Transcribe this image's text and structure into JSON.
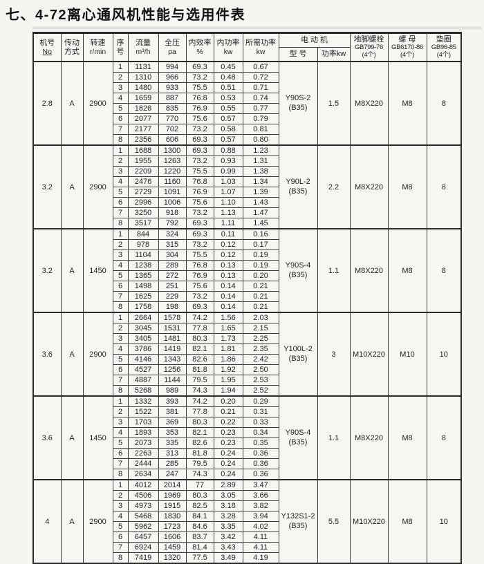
{
  "title": "七、4-72离心通风机性能与选用件表",
  "header": {
    "machine_no": [
      "机号",
      "No"
    ],
    "drive": [
      "传动",
      "方式"
    ],
    "speed": [
      "转速",
      "r/min"
    ],
    "seq": [
      "序",
      "号"
    ],
    "flow": [
      "流量",
      "m³/h"
    ],
    "pressure": [
      "全压",
      "pa"
    ],
    "efficiency": [
      "内效率",
      "%"
    ],
    "power": [
      "内功率",
      "kw"
    ],
    "required_power": [
      "所需功率",
      "kw"
    ],
    "motor": "电 动 机",
    "motor_model": "型 号",
    "motor_power": "功率kw",
    "bolt": [
      "地脚螺栓",
      "GB799-76",
      "(4个)"
    ],
    "nut": [
      "螺 母",
      "GB6170-86",
      "(4个)"
    ],
    "washer": [
      "垫圈",
      "GB96-85",
      "(4个)"
    ]
  },
  "blocks": [
    {
      "machine_no": "2.8",
      "drive": "A",
      "speed": "2900",
      "motor_model": "Y90S-2",
      "motor_frame": "(B35)",
      "motor_power": "1.5",
      "bolt": "M8X220",
      "nut": "M8",
      "washer": "8",
      "rows": [
        [
          "1",
          "1131",
          "994",
          "69.3",
          "0.45",
          "0.67"
        ],
        [
          "2",
          "1310",
          "966",
          "73.2",
          "0.48",
          "0.72"
        ],
        [
          "3",
          "1480",
          "933",
          "75.5",
          "0.51",
          "0.71"
        ],
        [
          "4",
          "1659",
          "887",
          "76.8",
          "0.53",
          "0.74"
        ],
        [
          "5",
          "1828",
          "835",
          "76.9",
          "0.55",
          "0.77"
        ],
        [
          "6",
          "2077",
          "770",
          "75.6",
          "0.57",
          "0.79"
        ],
        [
          "7",
          "2177",
          "702",
          "73.2",
          "0.58",
          "0.81"
        ],
        [
          "8",
          "2356",
          "606",
          "69.3",
          "0.57",
          "0.80"
        ]
      ]
    },
    {
      "machine_no": "3.2",
      "drive": "A",
      "speed": "2900",
      "motor_model": "Y90L-2",
      "motor_frame": "(B35)",
      "motor_power": "2.2",
      "bolt": "M8X220",
      "nut": "M8",
      "washer": "8",
      "rows": [
        [
          "1",
          "1688",
          "1300",
          "69.3",
          "0.88",
          "1.23"
        ],
        [
          "2",
          "1955",
          "1263",
          "73.2",
          "0.93",
          "1.31"
        ],
        [
          "3",
          "2209",
          "1220",
          "75.5",
          "0.99",
          "1.38"
        ],
        [
          "4",
          "2476",
          "1160",
          "76.8",
          "1.03",
          "1.34"
        ],
        [
          "5",
          "2729",
          "1091",
          "76.9",
          "1.07",
          "1.39"
        ],
        [
          "6",
          "2996",
          "1006",
          "75.6",
          "1.10",
          "1.43"
        ],
        [
          "7",
          "3250",
          "918",
          "73.2",
          "1.13",
          "1.47"
        ],
        [
          "8",
          "3517",
          "792",
          "69.3",
          "1.11",
          "1.45"
        ]
      ]
    },
    {
      "machine_no": "3.2",
      "drive": "A",
      "speed": "1450",
      "motor_model": "Y90S-4",
      "motor_frame": "(B35)",
      "motor_power": "1.1",
      "bolt": "M8X220",
      "nut": "M8",
      "washer": "8",
      "rows": [
        [
          "1",
          "844",
          "324",
          "69.3",
          "0.11",
          "0.16"
        ],
        [
          "2",
          "978",
          "315",
          "73.2",
          "0.12",
          "0.17"
        ],
        [
          "3",
          "1104",
          "304",
          "75.5",
          "0.12",
          "0.19"
        ],
        [
          "4",
          "1238",
          "289",
          "76.8",
          "0.13",
          "0.19"
        ],
        [
          "5",
          "1365",
          "272",
          "76.9",
          "0.13",
          "0.20"
        ],
        [
          "6",
          "1498",
          "251",
          "75.6",
          "0.14",
          "0.21"
        ],
        [
          "7",
          "1625",
          "229",
          "73.2",
          "0.14",
          "0.21"
        ],
        [
          "8",
          "1758",
          "198",
          "69.3",
          "0.14",
          "0.21"
        ]
      ]
    },
    {
      "machine_no": "3.6",
      "drive": "A",
      "speed": "2900",
      "motor_model": "Y100L-2",
      "motor_frame": "(B35)",
      "motor_power": "3",
      "bolt": "M10X220",
      "nut": "M10",
      "washer": "10",
      "rows": [
        [
          "1",
          "2664",
          "1578",
          "74.2",
          "1.56",
          "2.03"
        ],
        [
          "2",
          "3045",
          "1531",
          "77.8",
          "1.65",
          "2.15"
        ],
        [
          "3",
          "3405",
          "1481",
          "80.3",
          "1.73",
          "2.25"
        ],
        [
          "4",
          "3786",
          "1419",
          "82.1",
          "1.81",
          "2.35"
        ],
        [
          "5",
          "4146",
          "1343",
          "82.6",
          "1.86",
          "2.42"
        ],
        [
          "6",
          "4527",
          "1256",
          "81.8",
          "1.92",
          "2.50"
        ],
        [
          "7",
          "4887",
          "1144",
          "79.5",
          "1.95",
          "2.53"
        ],
        [
          "8",
          "5268",
          "989",
          "74.3",
          "1.94",
          "2.52"
        ]
      ]
    },
    {
      "machine_no": "3.6",
      "drive": "A",
      "speed": "1450",
      "motor_model": "Y90S-4",
      "motor_frame": "(B35)",
      "motor_power": "1.1",
      "bolt": "M8X220",
      "nut": "M8",
      "washer": "8",
      "rows": [
        [
          "1",
          "1332",
          "393",
          "74.2",
          "0.20",
          "0.29"
        ],
        [
          "2",
          "1522",
          "381",
          "77.8",
          "0.21",
          "0.31"
        ],
        [
          "3",
          "1703",
          "369",
          "80.3",
          "0.22",
          "0.33"
        ],
        [
          "4",
          "1893",
          "353",
          "82.1",
          "0.23",
          "0.34"
        ],
        [
          "5",
          "2073",
          "335",
          "82.6",
          "0.23",
          "0.35"
        ],
        [
          "6",
          "2263",
          "313",
          "81.8",
          "0.24",
          "0.36"
        ],
        [
          "7",
          "2444",
          "285",
          "79.5",
          "0.24",
          "0.36"
        ],
        [
          "8",
          "2634",
          "247",
          "74.3",
          "0.24",
          "0.36"
        ]
      ]
    },
    {
      "machine_no": "4",
      "drive": "A",
      "speed": "2900",
      "motor_model": "Y132S1-2",
      "motor_frame": "(B35)",
      "motor_power": "5.5",
      "bolt": "M10X220",
      "nut": "M8",
      "washer": "10",
      "rows": [
        [
          "1",
          "4012",
          "2014",
          "77",
          "2.89",
          "3.47"
        ],
        [
          "2",
          "4506",
          "1969",
          "80.3",
          "3.05",
          "3.66"
        ],
        [
          "3",
          "4973",
          "1915",
          "82.5",
          "3.18",
          "3.82"
        ],
        [
          "4",
          "5468",
          "1830",
          "84.1",
          "3.28",
          "3.94"
        ],
        [
          "5",
          "5962",
          "1723",
          "84.6",
          "3.35",
          "4.02"
        ],
        [
          "6",
          "6457",
          "1606",
          "83.7",
          "3.42",
          "4.11"
        ],
        [
          "7",
          "6924",
          "1459",
          "81.4",
          "3.43",
          "4.11"
        ],
        [
          "8",
          "7419",
          "1320",
          "77.5",
          "3.49",
          "4.19"
        ]
      ]
    }
  ]
}
